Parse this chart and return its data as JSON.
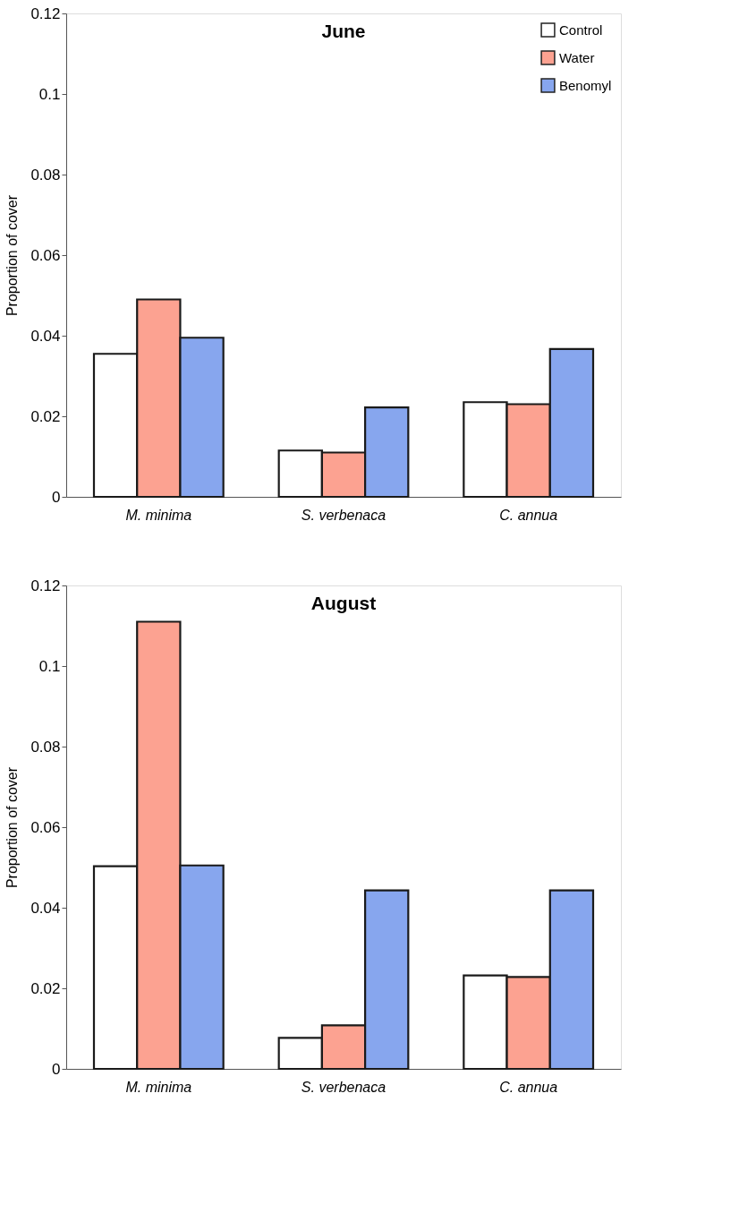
{
  "chart_data": [
    {
      "type": "bar",
      "title": "June",
      "ylabel": "Proportion of cover",
      "categories": [
        "M. minima",
        "S. verbenaca",
        "C. annua"
      ],
      "series": [
        {
          "name": "Control",
          "color": "#ffffff",
          "values": [
            0.0355,
            0.0115,
            0.0235
          ]
        },
        {
          "name": "Water",
          "color": "#fca291",
          "values": [
            0.049,
            0.011,
            0.023
          ]
        },
        {
          "name": "Benomyl",
          "color": "#87a6ee",
          "values": [
            0.0395,
            0.0222,
            0.0367
          ]
        }
      ],
      "ylim": [
        0,
        0.12
      ],
      "yticks": [
        0,
        0.02,
        0.04,
        0.06,
        0.08,
        0.1,
        0.12
      ],
      "grid": false,
      "legend": "top right"
    },
    {
      "type": "bar",
      "title": "August",
      "ylabel": "Proportion of cover",
      "categories": [
        "M. minima",
        "S. verbenaca",
        "C. annua"
      ],
      "series": [
        {
          "color": "#ffffff",
          "values": [
            0.0503,
            0.0077,
            0.0232
          ]
        },
        {
          "color": "#fca291",
          "values": [
            0.111,
            0.0108,
            0.0228
          ]
        },
        {
          "color": "#87a6ee",
          "values": [
            0.0505,
            0.0443,
            0.0443
          ]
        }
      ],
      "ylim": [
        0,
        0.12
      ],
      "yticks": [
        0,
        0.02,
        0.04,
        0.06,
        0.08,
        0.1,
        0.12
      ],
      "grid": false,
      "legend": false
    }
  ]
}
